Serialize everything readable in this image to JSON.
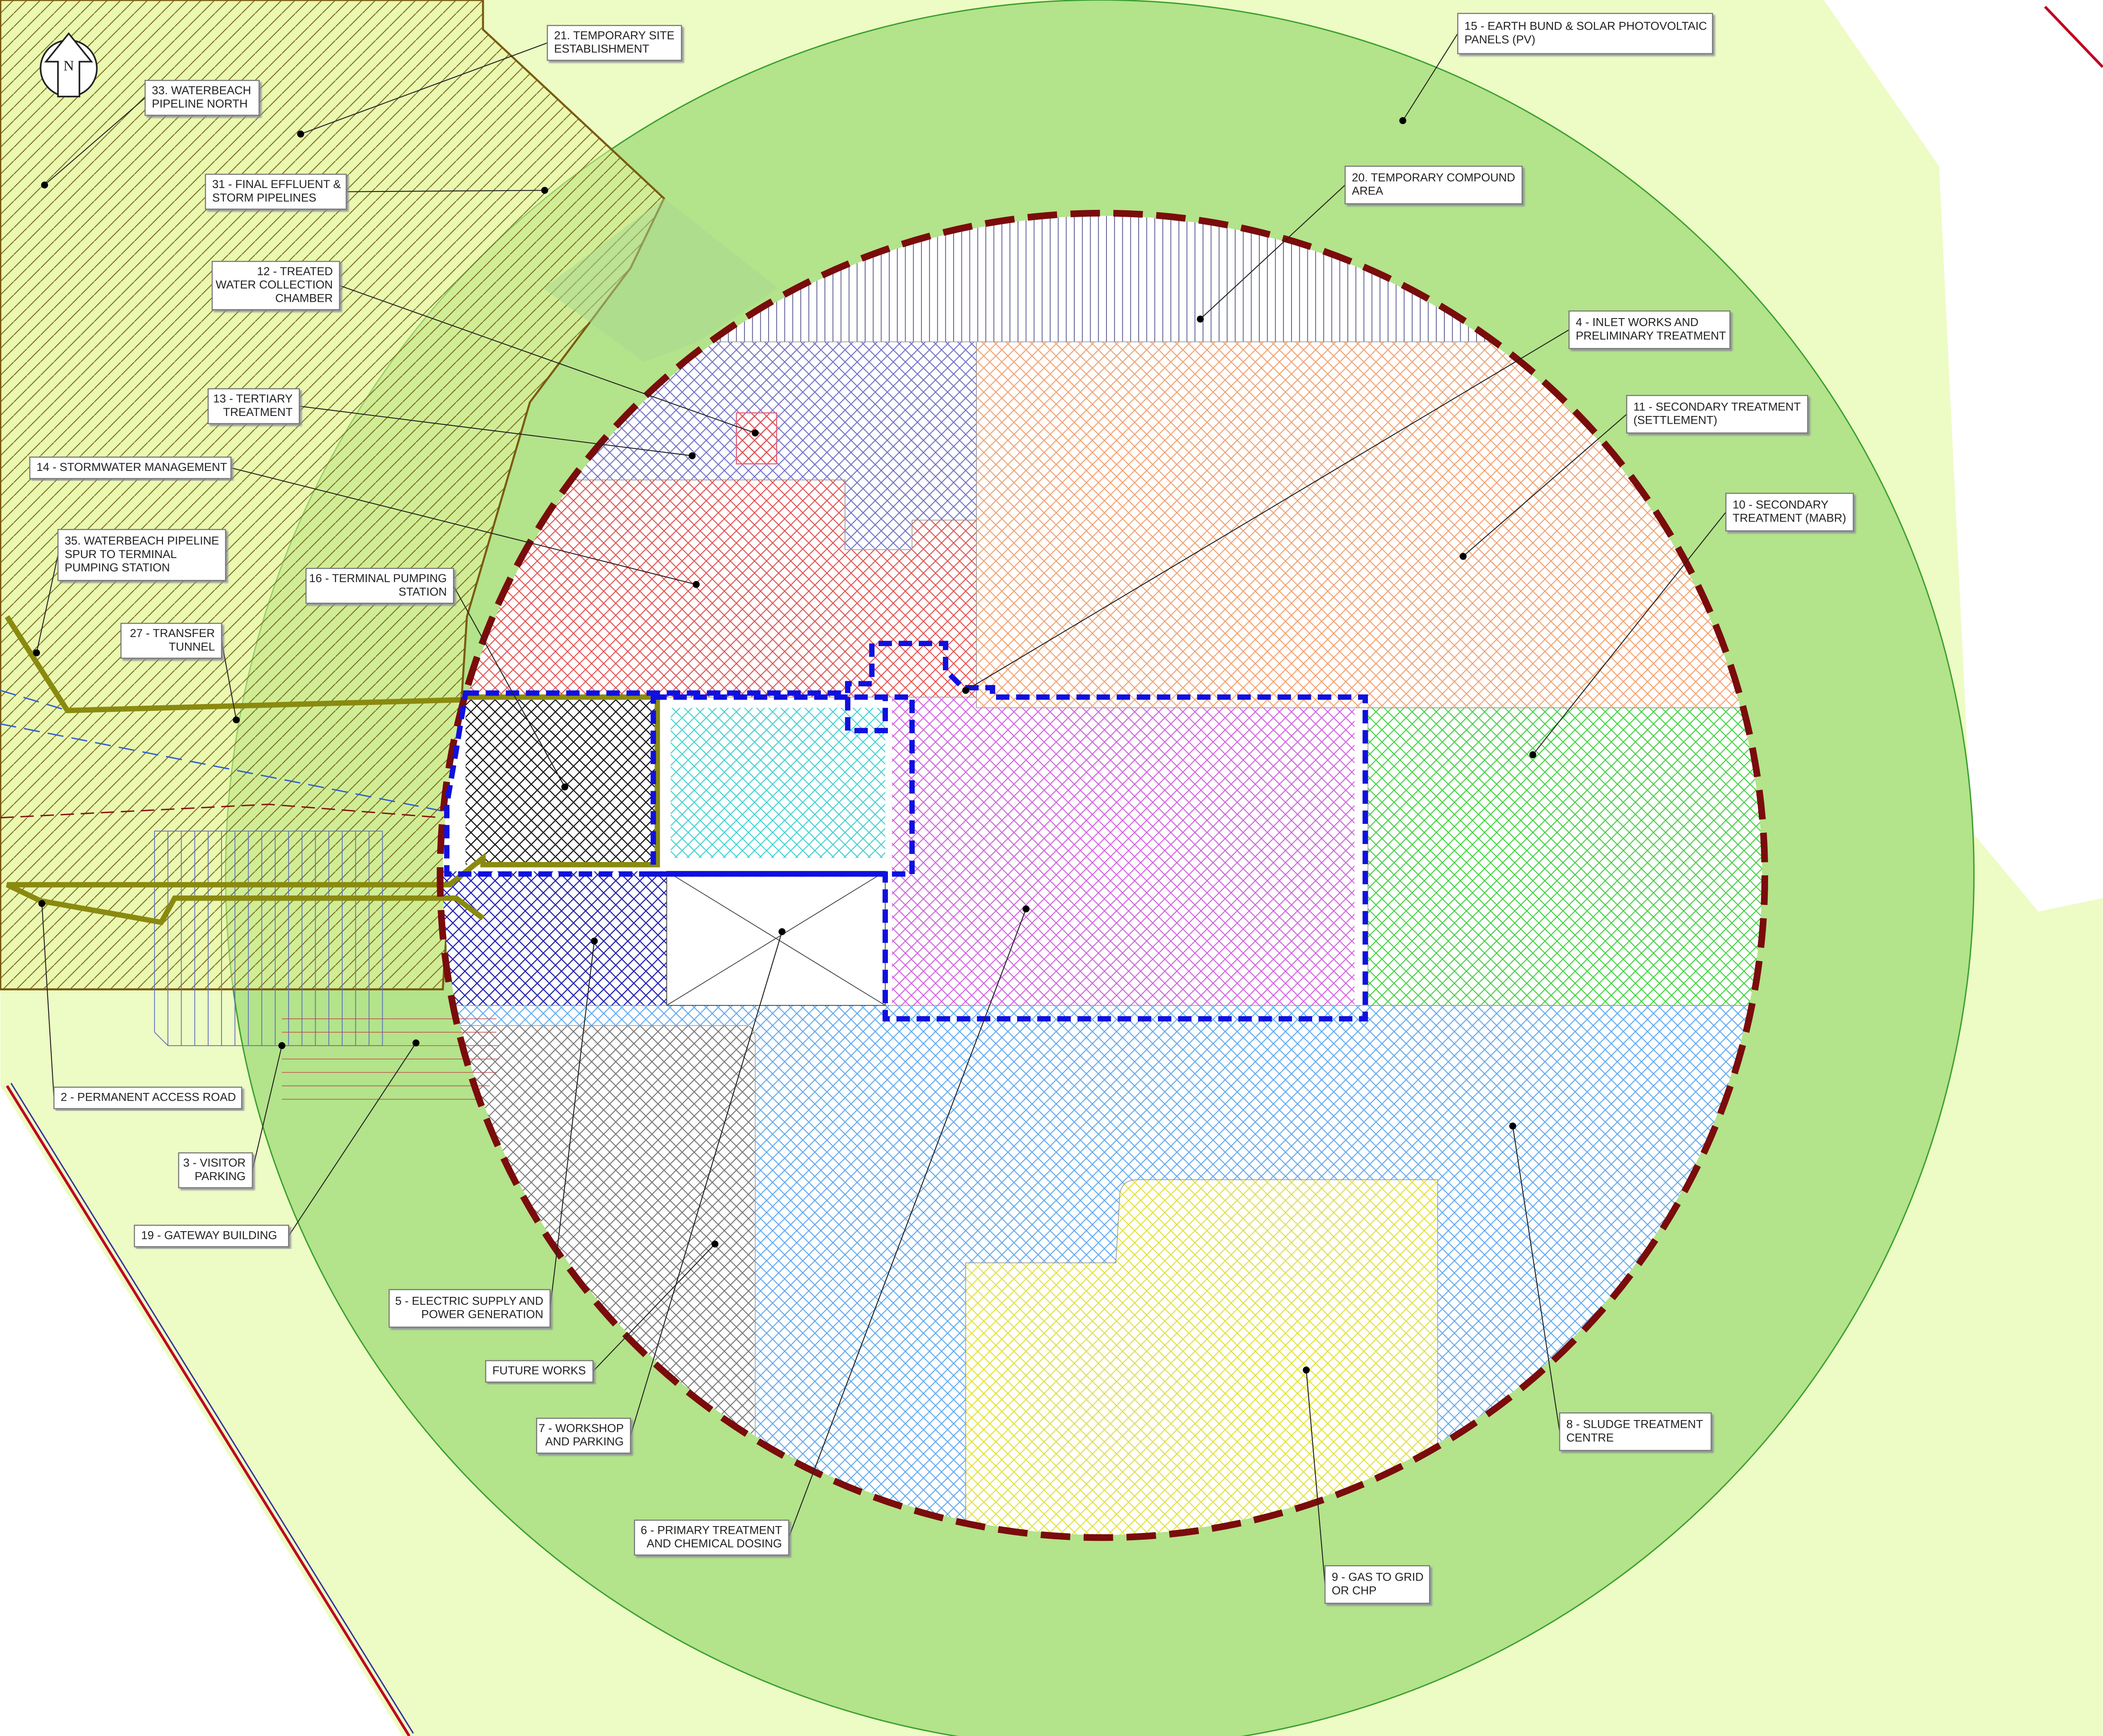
{
  "north_arrow": "N",
  "labels": [
    {
      "lines": [
        "21. TEMPORARY SITE",
        "ESTABLISHMENT"
      ]
    },
    {
      "lines": [
        "15 - EARTH BUND & SOLAR PHOTOVOLTAIC",
        "PANELS (PV)"
      ]
    },
    {
      "lines": [
        "33. WATERBEACH",
        "PIPELINE NORTH"
      ]
    },
    {
      "lines": [
        "31 - FINAL EFFLUENT &",
        "STORM PIPELINES"
      ]
    },
    {
      "lines": [
        "20. TEMPORARY COMPOUND",
        "AREA"
      ]
    },
    {
      "lines": [
        "12 - TREATED",
        "WATER COLLECTION",
        "CHAMBER"
      ]
    },
    {
      "lines": [
        "4 - INLET WORKS AND",
        "PRELIMINARY TREATMENT"
      ]
    },
    {
      "lines": [
        "13 - TERTIARY",
        "TREATMENT"
      ]
    },
    {
      "lines": [
        "11 - SECONDARY TREATMENT",
        "(SETTLEMENT)"
      ]
    },
    {
      "lines": [
        "14 - STORMWATER MANAGEMENT"
      ]
    },
    {
      "lines": [
        "10 - SECONDARY",
        "TREATMENT (MABR)"
      ]
    },
    {
      "lines": [
        "35. WATERBEACH PIPELINE",
        "SPUR TO TERMINAL",
        "PUMPING STATION"
      ]
    },
    {
      "lines": [
        "16 - TERMINAL PUMPING",
        "STATION"
      ]
    },
    {
      "lines": [
        "27 - TRANSFER",
        "TUNNEL"
      ]
    },
    {
      "lines": [
        "2 - PERMANENT ACCESS ROAD"
      ]
    },
    {
      "lines": [
        "3 - VISITOR",
        "PARKING"
      ]
    },
    {
      "lines": [
        "19 - GATEWAY BUILDING"
      ]
    },
    {
      "lines": [
        "5 - ELECTRIC SUPPLY AND",
        "POWER GENERATION"
      ]
    },
    {
      "lines": [
        "FUTURE WORKS"
      ]
    },
    {
      "lines": [
        "7 - WORKSHOP",
        "AND PARKING"
      ]
    },
    {
      "lines": [
        "6 - PRIMARY TREATMENT",
        "AND CHEMICAL DOSING"
      ]
    },
    {
      "lines": [
        "8 - SLUDGE TREATMENT",
        "CENTRE"
      ]
    },
    {
      "lines": [
        "9 - GAS TO GRID",
        "OR CHP"
      ]
    }
  ]
}
